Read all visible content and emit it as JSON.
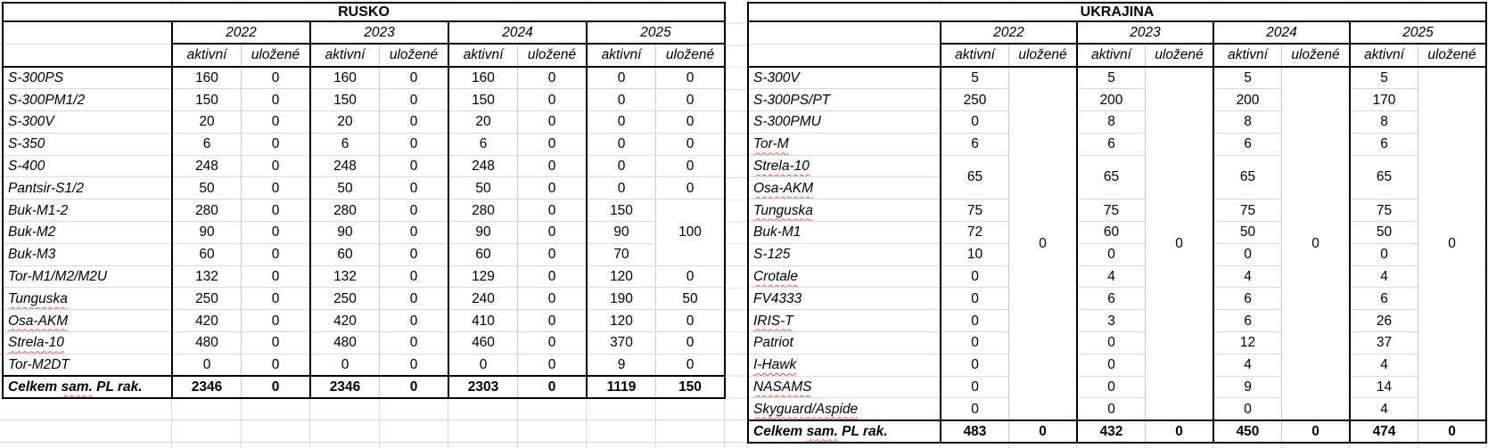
{
  "colors": {
    "table_border": "#000000",
    "gridline": "#d9d9d9",
    "spellcheck_underline": "#dd5850",
    "text": "#000000"
  },
  "tables": [
    {
      "id": "rusko",
      "title": "RUSKO",
      "years": [
        "2022",
        "2023",
        "2024",
        "2025"
      ],
      "subheaders": [
        "aktivní",
        "uložené"
      ],
      "rows": [
        {
          "label": "S-300PS",
          "squiggle": false,
          "values": [
            "160",
            "0",
            "160",
            "0",
            "160",
            "0",
            "0",
            "0"
          ]
        },
        {
          "label": "S-300PM1/2",
          "squiggle": false,
          "values": [
            "150",
            "0",
            "150",
            "0",
            "150",
            "0",
            "0",
            "0"
          ]
        },
        {
          "label": "S-300V",
          "squiggle": false,
          "values": [
            "20",
            "0",
            "20",
            "0",
            "20",
            "0",
            "0",
            "0"
          ]
        },
        {
          "label": "S-350",
          "squiggle": false,
          "values": [
            "6",
            "0",
            "6",
            "0",
            "6",
            "0",
            "0",
            "0"
          ]
        },
        {
          "label": "S-400",
          "squiggle": false,
          "values": [
            "248",
            "0",
            "248",
            "0",
            "248",
            "0",
            "0",
            "0"
          ]
        },
        {
          "label": "Pantsir-S1/2",
          "squiggle": false,
          "values": [
            "50",
            "0",
            "50",
            "0",
            "50",
            "0",
            "0",
            "0"
          ]
        },
        {
          "label": "Buk-M1-2",
          "squiggle": false,
          "values": [
            "280",
            "0",
            "280",
            "0",
            "280",
            "0",
            "150",
            null
          ]
        },
        {
          "label": "Buk-M2",
          "squiggle": false,
          "values": [
            "90",
            "0",
            "90",
            "0",
            "90",
            "0",
            "90",
            null
          ]
        },
        {
          "label": "Buk-M3",
          "squiggle": false,
          "values": [
            "60",
            "0",
            "60",
            "0",
            "60",
            "0",
            "70",
            null
          ]
        },
        {
          "label": "Tor-M1/M2/M2U",
          "squiggle": false,
          "values": [
            "132",
            "0",
            "132",
            "0",
            "129",
            "0",
            "120",
            "0"
          ]
        },
        {
          "label": "Tunguska",
          "squiggle": true,
          "values": [
            "250",
            "0",
            "250",
            "0",
            "240",
            "0",
            "190",
            "50"
          ]
        },
        {
          "label": "Osa-AKM",
          "squiggle": true,
          "values": [
            "420",
            "0",
            "420",
            "0",
            "410",
            "0",
            "120",
            "0"
          ]
        },
        {
          "label": "Strela-10",
          "squiggle": true,
          "values": [
            "480",
            "0",
            "480",
            "0",
            "460",
            "0",
            "370",
            "0"
          ]
        },
        {
          "label": "Tor-M2DT",
          "squiggle": false,
          "values": [
            "0",
            "0",
            "0",
            "0",
            "0",
            "0",
            "9",
            "0"
          ]
        }
      ],
      "merges": [
        {
          "col": 7,
          "row": 6,
          "rowspan": 3,
          "value": "100"
        }
      ],
      "total": {
        "label_parts": [
          {
            "text": "Celkem ",
            "squiggle": false
          },
          {
            "text": "sam.",
            "squiggle": true
          },
          {
            "text": " PL rak.",
            "squiggle": false
          }
        ],
        "values": [
          "2346",
          "0",
          "2346",
          "0",
          "2303",
          "0",
          "1119",
          "150"
        ]
      }
    },
    {
      "id": "ukrajina",
      "title": "UKRAJINA",
      "years": [
        "2022",
        "2023",
        "2024",
        "2025"
      ],
      "subheaders": [
        "aktivní",
        "uložené"
      ],
      "rows": [
        {
          "label": "S-300V",
          "squiggle": false,
          "values": [
            "5",
            null,
            "5",
            null,
            "5",
            null,
            "5",
            null
          ]
        },
        {
          "label": "S-300PS/PT",
          "squiggle": false,
          "values": [
            "250",
            null,
            "200",
            null,
            "200",
            null,
            "170",
            null
          ]
        },
        {
          "label": "S-300PMU",
          "squiggle": false,
          "values": [
            "0",
            null,
            "8",
            null,
            "8",
            null,
            "8",
            null
          ]
        },
        {
          "label": "Tor-M",
          "squiggle": true,
          "values": [
            "6",
            null,
            "6",
            null,
            "6",
            null,
            "6",
            null
          ]
        },
        {
          "label": "Strela-10",
          "squiggle": true,
          "values": [
            null,
            null,
            null,
            null,
            null,
            null,
            null,
            null
          ]
        },
        {
          "label": "Osa-AKM",
          "squiggle": true,
          "values": [
            null,
            null,
            null,
            null,
            null,
            null,
            null,
            null
          ]
        },
        {
          "label": "Tunguska",
          "squiggle": true,
          "values": [
            "75",
            null,
            "75",
            null,
            "75",
            null,
            "75",
            null
          ]
        },
        {
          "label": "Buk-M1",
          "squiggle": false,
          "values": [
            "72",
            null,
            "60",
            null,
            "50",
            null,
            "50",
            null
          ]
        },
        {
          "label": "S-125",
          "squiggle": false,
          "values": [
            "10",
            null,
            "0",
            null,
            "0",
            null,
            "0",
            null
          ]
        },
        {
          "label": "Crotale",
          "squiggle": true,
          "values": [
            "0",
            null,
            "4",
            null,
            "4",
            null,
            "4",
            null
          ]
        },
        {
          "label": "FV4333",
          "squiggle": false,
          "values": [
            "0",
            null,
            "6",
            null,
            "6",
            null,
            "6",
            null
          ]
        },
        {
          "label": "IRIS-T",
          "squiggle": true,
          "values": [
            "0",
            null,
            "3",
            null,
            "6",
            null,
            "26",
            null
          ]
        },
        {
          "label": "Patriot",
          "squiggle": false,
          "values": [
            "0",
            null,
            "0",
            null,
            "12",
            null,
            "37",
            null
          ]
        },
        {
          "label": "I-Hawk",
          "squiggle": true,
          "values": [
            "0",
            null,
            "0",
            null,
            "4",
            null,
            "4",
            null
          ]
        },
        {
          "label": "NASAMS",
          "squiggle": true,
          "values": [
            "0",
            null,
            "0",
            null,
            "9",
            null,
            "14",
            null
          ]
        },
        {
          "label": "Skyguard/Aspide",
          "squiggle": true,
          "values": [
            "0",
            null,
            "0",
            null,
            "0",
            null,
            "4",
            null
          ]
        }
      ],
      "merges": [
        {
          "col": 0,
          "row": 4,
          "rowspan": 2,
          "value": "65"
        },
        {
          "col": 2,
          "row": 4,
          "rowspan": 2,
          "value": "65"
        },
        {
          "col": 4,
          "row": 4,
          "rowspan": 2,
          "value": "65"
        },
        {
          "col": 6,
          "row": 4,
          "rowspan": 2,
          "value": "65"
        },
        {
          "col": 1,
          "row": 0,
          "rowspan": 16,
          "value": "0"
        },
        {
          "col": 3,
          "row": 0,
          "rowspan": 16,
          "value": "0"
        },
        {
          "col": 5,
          "row": 0,
          "rowspan": 16,
          "value": "0"
        },
        {
          "col": 7,
          "row": 0,
          "rowspan": 16,
          "value": "0"
        }
      ],
      "total": {
        "label_parts": [
          {
            "text": "Celkem ",
            "squiggle": false
          },
          {
            "text": "sam.",
            "squiggle": true
          },
          {
            "text": " PL rak.",
            "squiggle": false
          }
        ],
        "values": [
          "483",
          "0",
          "432",
          "0",
          "450",
          "0",
          "474",
          "0"
        ]
      }
    }
  ]
}
